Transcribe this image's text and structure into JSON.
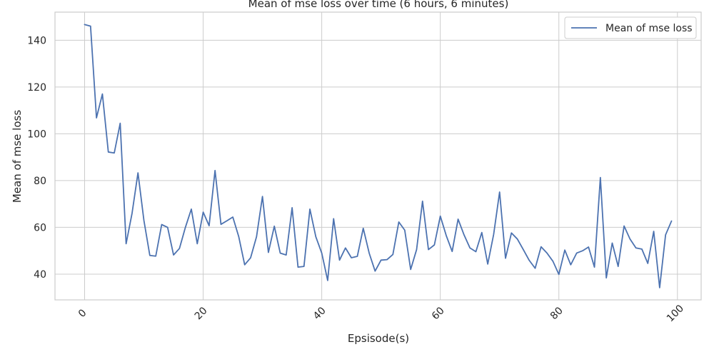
{
  "chart_data": {
    "type": "line",
    "title": "Mean of mse loss over time (6 hours, 6 minutes)",
    "xlabel": "Epsisode(s)",
    "ylabel": "Mean of mse loss",
    "xlim": [
      -5,
      104
    ],
    "ylim": [
      29,
      152
    ],
    "xticks": [
      0,
      20,
      40,
      60,
      80,
      100
    ],
    "yticks": [
      40,
      60,
      80,
      100,
      120,
      140
    ],
    "grid": true,
    "legend_position": "top-right",
    "line_color": "#4c72b0",
    "series": [
      {
        "name": "Mean of mse loss",
        "x": [
          0,
          1,
          2,
          3,
          4,
          5,
          6,
          7,
          8,
          9,
          10,
          11,
          12,
          13,
          14,
          15,
          16,
          17,
          18,
          19,
          20,
          21,
          22,
          23,
          24,
          25,
          26,
          27,
          28,
          29,
          30,
          31,
          32,
          33,
          34,
          35,
          36,
          37,
          38,
          39,
          40,
          41,
          42,
          43,
          44,
          45,
          46,
          47,
          48,
          49,
          50,
          51,
          52,
          53,
          54,
          55,
          56,
          57,
          58,
          59,
          60,
          61,
          62,
          63,
          64,
          65,
          66,
          67,
          68,
          69,
          70,
          71,
          72,
          73,
          74,
          75,
          76,
          77,
          78,
          79,
          80,
          81,
          82,
          83,
          84,
          85,
          86,
          87,
          88,
          89,
          90,
          91,
          92,
          93,
          94,
          95,
          96,
          97,
          98,
          99
        ],
        "values": [
          146.7,
          146.0,
          106.8,
          117.0,
          92.2,
          91.8,
          104.5,
          53.0,
          66.0,
          83.3,
          63.0,
          48.0,
          47.7,
          61.2,
          60.0,
          48.2,
          51.0,
          60.0,
          67.8,
          53.0,
          66.5,
          60.7,
          84.3,
          61.3,
          62.8,
          64.4,
          56.0,
          44.0,
          47.0,
          56.0,
          73.2,
          49.3,
          60.5,
          49.0,
          48.2,
          68.4,
          43.0,
          43.3,
          67.8,
          56.0,
          49.0,
          37.3,
          63.7,
          46.0,
          51.2,
          47.0,
          47.6,
          59.6,
          49.0,
          41.3,
          46.0,
          46.2,
          48.4,
          62.3,
          58.8,
          42.0,
          50.5,
          71.2,
          50.5,
          52.5,
          64.8,
          56.5,
          49.7,
          63.5,
          56.8,
          51.2,
          49.6,
          57.8,
          44.3,
          57.0,
          75.1,
          46.8,
          57.6,
          55.0,
          50.5,
          45.9,
          42.5,
          51.7,
          49.0,
          45.5,
          39.9,
          50.3,
          44.0,
          49.0,
          50.0,
          51.6,
          43.0,
          81.3,
          38.4,
          53.3,
          43.3,
          60.6,
          55.0,
          51.2,
          50.7,
          44.6,
          58.3,
          34.2,
          56.8,
          62.7
        ]
      }
    ]
  }
}
